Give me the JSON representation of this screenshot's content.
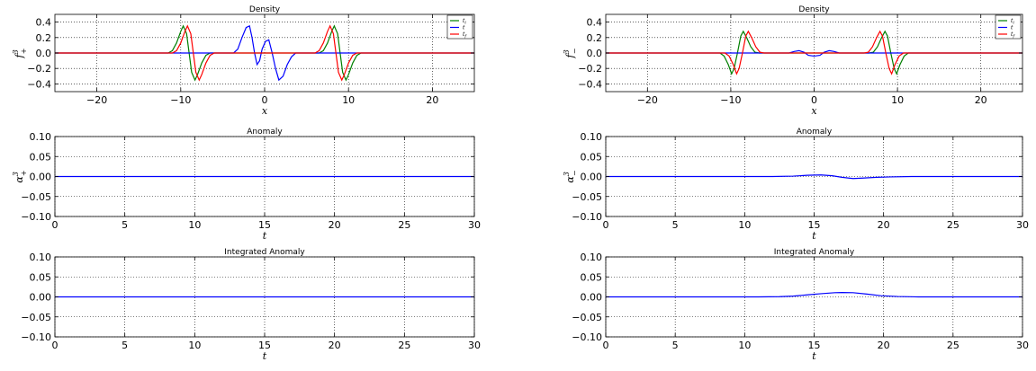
{
  "chart_data": [
    {
      "id": "tl",
      "type": "line",
      "title": "Density",
      "xlabel": "x",
      "ylabel": {
        "base": "f",
        "sup": "3",
        "sub": "+"
      },
      "xlim": [
        -25,
        25
      ],
      "ylim": [
        -0.5,
        0.5
      ],
      "xticks": [
        -20,
        -10,
        0,
        10,
        20
      ],
      "xtick_labels": [
        "−20",
        "−10",
        "0",
        "10",
        "20"
      ],
      "yticks": [
        0.4,
        0.2,
        0.0,
        -0.2,
        -0.4
      ],
      "ytick_labels": [
        "0.4",
        "0.2",
        "0.0",
        "−0.2",
        "−0.4"
      ],
      "grid": true,
      "legend": {
        "position": "top-right",
        "entries": [
          {
            "label": "t",
            "sub": "i",
            "color": "#007f00"
          },
          {
            "label": "t",
            "sub": "",
            "color": "#0000ff"
          },
          {
            "label": "t",
            "sub": "f",
            "color": "#ff0000"
          }
        ]
      },
      "series": [
        {
          "color": "#007f00",
          "points": [
            [
              -25,
              0
            ],
            [
              -11.5,
              0
            ],
            [
              -11,
              0.03
            ],
            [
              -10.5,
              0.13
            ],
            [
              -10,
              0.28
            ],
            [
              -9.7,
              0.35
            ],
            [
              -9.3,
              0.25
            ],
            [
              -9,
              0
            ],
            [
              -8.7,
              -0.25
            ],
            [
              -8.3,
              -0.35
            ],
            [
              -8,
              -0.28
            ],
            [
              -7.5,
              -0.13
            ],
            [
              -7,
              -0.03
            ],
            [
              -6.5,
              0
            ],
            [
              6.5,
              0
            ],
            [
              7,
              0.03
            ],
            [
              7.5,
              0.13
            ],
            [
              8,
              0.28
            ],
            [
              8.3,
              0.35
            ],
            [
              8.7,
              0.25
            ],
            [
              9,
              0
            ],
            [
              9.3,
              -0.25
            ],
            [
              9.7,
              -0.35
            ],
            [
              10,
              -0.28
            ],
            [
              10.5,
              -0.13
            ],
            [
              11,
              -0.03
            ],
            [
              11.5,
              0
            ],
            [
              25,
              0
            ]
          ]
        },
        {
          "color": "#0000ff",
          "points": [
            [
              -25,
              0
            ],
            [
              -3.7,
              0
            ],
            [
              -3.2,
              0.05
            ],
            [
              -2.7,
              0.2
            ],
            [
              -2.2,
              0.33
            ],
            [
              -1.8,
              0.35
            ],
            [
              -1.5,
              0.2
            ],
            [
              -1.2,
              0.0
            ],
            [
              -0.9,
              -0.15
            ],
            [
              -0.6,
              -0.1
            ],
            [
              -0.3,
              0.05
            ],
            [
              0.1,
              0.15
            ],
            [
              0.5,
              0.17
            ],
            [
              0.9,
              0.0
            ],
            [
              1.3,
              -0.2
            ],
            [
              1.7,
              -0.35
            ],
            [
              2.2,
              -0.3
            ],
            [
              2.7,
              -0.15
            ],
            [
              3.2,
              -0.05
            ],
            [
              3.7,
              0
            ],
            [
              25,
              0
            ]
          ]
        },
        {
          "color": "#ff0000",
          "points": [
            [
              -25,
              0
            ],
            [
              -11,
              0
            ],
            [
              -10.5,
              0.03
            ],
            [
              -10,
              0.13
            ],
            [
              -9.5,
              0.28
            ],
            [
              -9.2,
              0.35
            ],
            [
              -8.8,
              0.25
            ],
            [
              -8.5,
              0
            ],
            [
              -8.2,
              -0.25
            ],
            [
              -7.8,
              -0.35
            ],
            [
              -7.5,
              -0.28
            ],
            [
              -7,
              -0.13
            ],
            [
              -6.5,
              -0.03
            ],
            [
              -6,
              0
            ],
            [
              6,
              0
            ],
            [
              6.5,
              0.03
            ],
            [
              7,
              0.13
            ],
            [
              7.5,
              0.28
            ],
            [
              7.8,
              0.35
            ],
            [
              8.2,
              0.25
            ],
            [
              8.5,
              0
            ],
            [
              8.8,
              -0.25
            ],
            [
              9.2,
              -0.35
            ],
            [
              9.5,
              -0.28
            ],
            [
              10,
              -0.13
            ],
            [
              10.5,
              -0.03
            ],
            [
              11,
              0
            ],
            [
              25,
              0
            ]
          ]
        }
      ]
    },
    {
      "id": "tr",
      "type": "line",
      "title": "Density",
      "xlabel": "x",
      "ylabel": {
        "base": "f",
        "sup": "3",
        "sub": "−"
      },
      "xlim": [
        -25,
        25
      ],
      "ylim": [
        -0.5,
        0.5
      ],
      "xticks": [
        -20,
        -10,
        0,
        10,
        20
      ],
      "xtick_labels": [
        "−20",
        "−10",
        "0",
        "10",
        "20"
      ],
      "yticks": [
        0.4,
        0.2,
        0.0,
        -0.2,
        -0.4
      ],
      "ytick_labels": [
        "0.4",
        "0.2",
        "0.0",
        "−0.2",
        "−0.4"
      ],
      "grid": true,
      "legend": {
        "position": "top-right",
        "entries": [
          {
            "label": "t",
            "sub": "i",
            "color": "#007f00"
          },
          {
            "label": "t",
            "sub": "",
            "color": "#0000ff"
          },
          {
            "label": "t",
            "sub": "f",
            "color": "#ff0000"
          }
        ]
      },
      "series": [
        {
          "color": "#007f00",
          "points": [
            [
              -25,
              0
            ],
            [
              -11.3,
              0
            ],
            [
              -10.8,
              -0.04
            ],
            [
              -10.3,
              -0.15
            ],
            [
              -9.9,
              -0.27
            ],
            [
              -9.6,
              -0.2
            ],
            [
              -9.2,
              0.0
            ],
            [
              -8.8,
              0.22
            ],
            [
              -8.5,
              0.28
            ],
            [
              -8.1,
              0.2
            ],
            [
              -7.6,
              0.08
            ],
            [
              -7.1,
              0.01
            ],
            [
              -6.6,
              0
            ],
            [
              6.6,
              0
            ],
            [
              7.1,
              0.01
            ],
            [
              7.6,
              0.08
            ],
            [
              8.1,
              0.2
            ],
            [
              8.5,
              0.28
            ],
            [
              8.8,
              0.22
            ],
            [
              9.2,
              0
            ],
            [
              9.6,
              -0.2
            ],
            [
              9.9,
              -0.27
            ],
            [
              10.3,
              -0.15
            ],
            [
              10.8,
              -0.04
            ],
            [
              11.3,
              0
            ],
            [
              25,
              0
            ]
          ]
        },
        {
          "color": "#0000ff",
          "points": [
            [
              -25,
              0
            ],
            [
              -3,
              0
            ],
            [
              -2.4,
              0.02
            ],
            [
              -1.8,
              0.03
            ],
            [
              -1.2,
              0.01
            ],
            [
              -0.7,
              -0.03
            ],
            [
              0,
              -0.04
            ],
            [
              0.7,
              -0.03
            ],
            [
              1.2,
              0.01
            ],
            [
              1.8,
              0.03
            ],
            [
              2.4,
              0.02
            ],
            [
              3,
              0
            ],
            [
              25,
              0
            ]
          ]
        },
        {
          "color": "#ff0000",
          "points": [
            [
              -25,
              0
            ],
            [
              -10.7,
              0
            ],
            [
              -10.2,
              -0.04
            ],
            [
              -9.7,
              -0.15
            ],
            [
              -9.3,
              -0.27
            ],
            [
              -9,
              -0.2
            ],
            [
              -8.6,
              0.0
            ],
            [
              -8.2,
              0.22
            ],
            [
              -7.9,
              0.28
            ],
            [
              -7.5,
              0.2
            ],
            [
              -7,
              0.08
            ],
            [
              -6.5,
              0.01
            ],
            [
              -6,
              0
            ],
            [
              6,
              0
            ],
            [
              6.5,
              0.01
            ],
            [
              7,
              0.08
            ],
            [
              7.5,
              0.2
            ],
            [
              7.9,
              0.28
            ],
            [
              8.2,
              0.22
            ],
            [
              8.6,
              0
            ],
            [
              9,
              -0.2
            ],
            [
              9.3,
              -0.27
            ],
            [
              9.7,
              -0.15
            ],
            [
              10.2,
              -0.04
            ],
            [
              10.7,
              0
            ],
            [
              25,
              0
            ]
          ]
        }
      ]
    },
    {
      "id": "ml",
      "type": "line",
      "title": "Anomaly",
      "xlabel": "t",
      "ylabel": {
        "base": "α",
        "sup": "3",
        "sub": "+"
      },
      "xlim": [
        0,
        30
      ],
      "ylim": [
        -0.1,
        0.1
      ],
      "xticks": [
        0,
        5,
        10,
        15,
        20,
        25,
        30
      ],
      "xtick_labels": [
        "0",
        "5",
        "10",
        "15",
        "20",
        "25",
        "30"
      ],
      "yticks": [
        0.1,
        0.05,
        0.0,
        -0.05,
        -0.1
      ],
      "ytick_labels": [
        "0.10",
        "0.05",
        "0.00",
        "−0.05",
        "−0.10"
      ],
      "grid": true,
      "series": [
        {
          "color": "#0000ff",
          "points": [
            [
              0,
              0
            ],
            [
              30,
              0
            ]
          ]
        }
      ]
    },
    {
      "id": "mr",
      "type": "line",
      "title": "Anomaly",
      "xlabel": "t",
      "ylabel": {
        "base": "α",
        "sup": "3",
        "sub": "−"
      },
      "xlim": [
        0,
        30
      ],
      "ylim": [
        -0.1,
        0.1
      ],
      "xticks": [
        0,
        5,
        10,
        15,
        20,
        25,
        30
      ],
      "xtick_labels": [
        "0",
        "5",
        "10",
        "15",
        "20",
        "25",
        "30"
      ],
      "yticks": [
        0.1,
        0.05,
        0.0,
        -0.05,
        -0.1
      ],
      "ytick_labels": [
        "0.10",
        "0.05",
        "0.00",
        "−0.05",
        "−0.10"
      ],
      "grid": true,
      "series": [
        {
          "color": "#0000ff",
          "points": [
            [
              0,
              0
            ],
            [
              12,
              0
            ],
            [
              13.5,
              0.001
            ],
            [
              14.5,
              0.003
            ],
            [
              15.5,
              0.004
            ],
            [
              16.3,
              0.002
            ],
            [
              17,
              -0.002
            ],
            [
              17.8,
              -0.005
            ],
            [
              18.5,
              -0.004
            ],
            [
              19.5,
              -0.002
            ],
            [
              20.5,
              -0.001
            ],
            [
              22,
              0
            ],
            [
              30,
              0
            ]
          ]
        }
      ]
    },
    {
      "id": "bl",
      "type": "line",
      "title": "Integrated Anomaly",
      "xlabel": "t",
      "ylabel": null,
      "xlim": [
        0,
        30
      ],
      "ylim": [
        -0.1,
        0.1
      ],
      "xticks": [
        0,
        5,
        10,
        15,
        20,
        25,
        30
      ],
      "xtick_labels": [
        "0",
        "5",
        "10",
        "15",
        "20",
        "25",
        "30"
      ],
      "yticks": [
        0.1,
        0.05,
        0.0,
        -0.05,
        -0.1
      ],
      "ytick_labels": [
        "0.10",
        "0.05",
        "0.00",
        "−0.05",
        "−0.10"
      ],
      "grid": true,
      "series": [
        {
          "color": "#0000ff",
          "points": [
            [
              0,
              0
            ],
            [
              30,
              0
            ]
          ]
        }
      ]
    },
    {
      "id": "br",
      "type": "line",
      "title": "Integrated Anomaly",
      "xlabel": "t",
      "ylabel": null,
      "xlim": [
        0,
        30
      ],
      "ylim": [
        -0.1,
        0.1
      ],
      "xticks": [
        0,
        5,
        10,
        15,
        20,
        25,
        30
      ],
      "xtick_labels": [
        "0",
        "5",
        "10",
        "15",
        "20",
        "25",
        "30"
      ],
      "yticks": [
        0.1,
        0.05,
        0.0,
        -0.05,
        -0.1
      ],
      "ytick_labels": [
        "0.10",
        "0.05",
        "0.00",
        "−0.05",
        "−0.10"
      ],
      "grid": true,
      "series": [
        {
          "color": "#0000ff",
          "points": [
            [
              0,
              0
            ],
            [
              11,
              0
            ],
            [
              12.5,
              0.0005
            ],
            [
              13.5,
              0.002
            ],
            [
              14.5,
              0.005
            ],
            [
              15.5,
              0.008
            ],
            [
              16.5,
              0.0105
            ],
            [
              17,
              0.011
            ],
            [
              17.8,
              0.0105
            ],
            [
              18.8,
              0.007
            ],
            [
              19.8,
              0.003
            ],
            [
              21,
              0.001
            ],
            [
              22.5,
              0
            ],
            [
              30,
              0
            ]
          ]
        }
      ]
    }
  ]
}
